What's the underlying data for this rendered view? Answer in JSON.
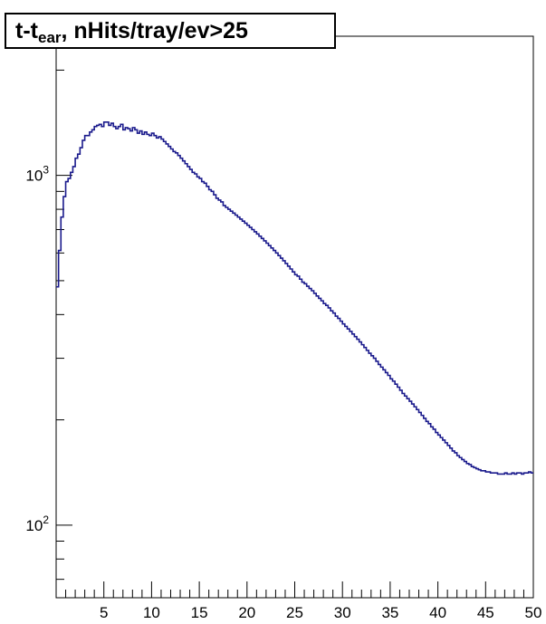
{
  "title": {
    "prefix": "t-t",
    "subscript": "ear",
    "suffix": ", nHits/tray/ev>25"
  },
  "chart_data": {
    "type": "line",
    "style": "step-histogram",
    "line_color": "#1a1a8c",
    "xlim": [
      0,
      50
    ],
    "ylim": [
      62,
      2500
    ],
    "y_scale": "log",
    "grid": false,
    "x_ticks": [
      "5",
      "10",
      "15",
      "20",
      "25",
      "30",
      "35",
      "40",
      "45",
      "50"
    ],
    "y_ticks": [
      {
        "base": "10",
        "exp": "3",
        "value": 1000
      },
      {
        "base": "10",
        "exp": "2",
        "value": 100
      }
    ],
    "bin_width": 0.25,
    "x_start": 0.0,
    "values": [
      480,
      610,
      760,
      870,
      960,
      980,
      1020,
      1060,
      1120,
      1150,
      1200,
      1260,
      1300,
      1300,
      1330,
      1350,
      1380,
      1390,
      1400,
      1380,
      1420,
      1420,
      1390,
      1410,
      1380,
      1360,
      1380,
      1400,
      1350,
      1370,
      1360,
      1340,
      1370,
      1350,
      1320,
      1340,
      1310,
      1330,
      1310,
      1300,
      1320,
      1300,
      1280,
      1290,
      1270,
      1250,
      1230,
      1210,
      1190,
      1170,
      1160,
      1140,
      1120,
      1100,
      1080,
      1060,
      1040,
      1020,
      1010,
      990,
      980,
      960,
      950,
      930,
      910,
      900,
      880,
      860,
      850,
      840,
      820,
      810,
      800,
      790,
      780,
      770,
      760,
      750,
      740,
      730,
      720,
      710,
      700,
      690,
      680,
      670,
      660,
      650,
      640,
      630,
      620,
      610,
      600,
      590,
      580,
      570,
      560,
      550,
      540,
      530,
      520,
      515,
      505,
      495,
      490,
      482,
      475,
      468,
      460,
      452,
      445,
      438,
      430,
      425,
      418,
      410,
      404,
      396,
      390,
      383,
      376,
      370,
      364,
      358,
      352,
      346,
      340,
      334,
      328,
      322,
      316,
      310,
      305,
      300,
      294,
      288,
      283,
      278,
      273,
      268,
      262,
      258,
      253,
      248,
      243,
      238,
      234,
      230,
      226,
      222,
      218,
      214,
      210,
      206,
      202,
      198,
      195,
      191,
      188,
      184,
      181,
      178,
      175,
      172,
      169,
      166,
      163,
      161,
      158,
      156,
      154,
      152,
      150,
      149,
      147,
      146,
      145,
      144,
      143,
      143,
      142,
      142,
      141,
      141,
      141,
      140,
      140,
      140,
      141,
      140,
      140,
      141,
      140,
      141,
      141,
      140,
      141,
      141,
      142,
      141
    ]
  }
}
